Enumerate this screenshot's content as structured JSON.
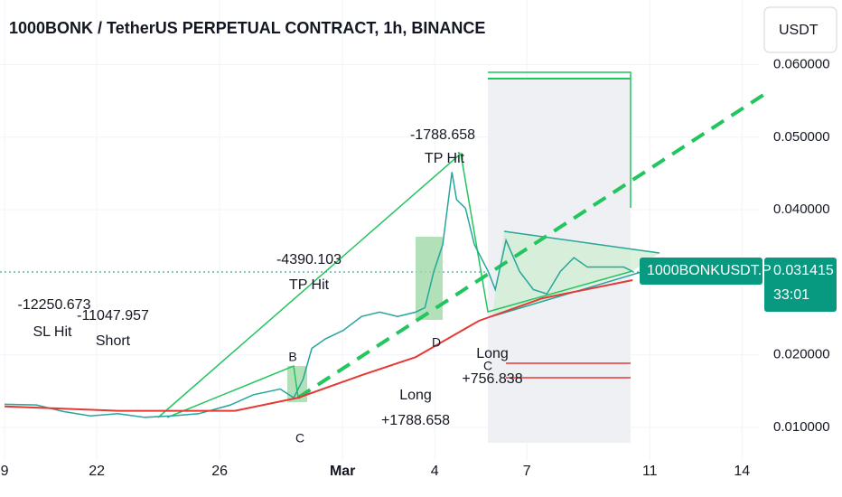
{
  "chart_data": {
    "type": "line",
    "title": "1000BONK / TetherUS PERPETUAL CONTRACT, 1h, BINANCE",
    "currency": "USDT",
    "symbol_label": "1000BONKUSDT.P",
    "last_price": 0.031415,
    "countdown": "33:01",
    "xlim": [
      -0.15,
      24.55
    ],
    "xticks": [
      {
        "value": 0,
        "label": "9"
      },
      {
        "value": 3,
        "label": "22"
      },
      {
        "value": 7,
        "label": "26"
      },
      {
        "value": 11,
        "label": "Mar"
      },
      {
        "value": 14,
        "label": "4"
      },
      {
        "value": 17,
        "label": "7"
      },
      {
        "value": 21,
        "label": "11"
      },
      {
        "value": 24,
        "label": "14"
      }
    ],
    "ylim": [
      0.0054,
      0.0689
    ],
    "yticks": [
      {
        "value": 0.01,
        "label": "0.010000"
      },
      {
        "value": 0.02,
        "label": "0.020000"
      },
      {
        "value": 0.04,
        "label": "0.040000"
      },
      {
        "value": 0.05,
        "label": "0.050000"
      },
      {
        "value": 0.06,
        "label": "0.060000"
      }
    ],
    "series": [
      {
        "color": "#26a69a",
        "x": [
          0,
          1.03,
          1.91,
          2.79,
          3.68,
          4.56,
          5.44,
          6.32,
          7.35,
          8.09,
          8.97,
          9.41,
          9.71,
          10.0,
          10.44,
          11.03,
          11.62,
          12.21,
          12.79,
          13.38,
          13.68,
          13.97,
          14.26,
          14.56,
          14.71,
          15.0,
          15.29,
          15.74,
          15.97,
          16.32,
          16.76,
          17.21,
          17.65,
          18.09,
          18.53,
          18.97,
          19.56,
          20.15,
          20.44
        ],
        "values": [
          0.0132,
          0.0131,
          0.0122,
          0.0116,
          0.0119,
          0.0114,
          0.0116,
          0.0119,
          0.0131,
          0.0145,
          0.0153,
          0.0141,
          0.0166,
          0.0209,
          0.0222,
          0.0234,
          0.0253,
          0.0259,
          0.0253,
          0.0259,
          0.0265,
          0.0315,
          0.0352,
          0.0452,
          0.0414,
          0.0402,
          0.0352,
          0.0315,
          0.029,
          0.0358,
          0.0315,
          0.029,
          0.0284,
          0.0315,
          0.0334,
          0.0321,
          0.0321,
          0.0321,
          0.0315
        ]
      },
      {
        "color": "#e53935",
        "x": [
          0,
          3.68,
          7.5,
          9.56,
          11.62,
          13.38,
          15.44,
          17.5,
          20.44
        ],
        "values": [
          0.0129,
          0.0123,
          0.0123,
          0.0141,
          0.0172,
          0.0197,
          0.0247,
          0.0278,
          0.0303
        ]
      }
    ],
    "annotations": [
      "-12250.673",
      "SL Hit",
      "-11047.957",
      "Short",
      "-4390.103",
      "TP Hit",
      "-1788.658",
      "TP Hit",
      "Long",
      "+1788.658",
      "Long",
      "+756.838",
      "B",
      "C",
      "D",
      "C"
    ]
  }
}
